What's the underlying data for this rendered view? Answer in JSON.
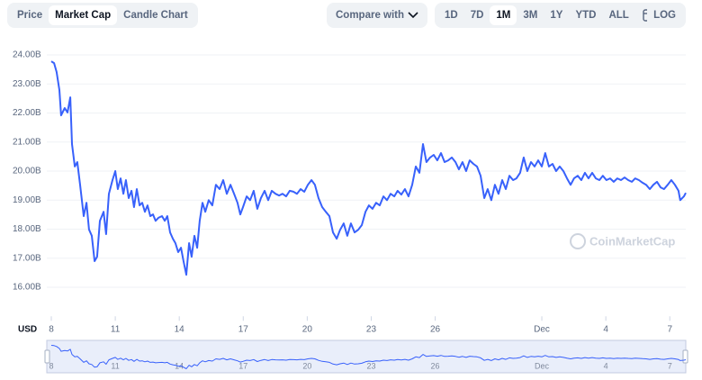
{
  "toolbar": {
    "views": [
      "Price",
      "Market Cap",
      "Candle Chart"
    ],
    "compare": "Compare with",
    "ranges": [
      "1D",
      "7D",
      "1M",
      "3M",
      "1Y",
      "YTD",
      "ALL"
    ],
    "scale_button": "LOG"
  },
  "watermark": "CoinMarketCap",
  "chart_data": {
    "type": "line",
    "y_label": "USD",
    "color": "#3861fb",
    "grid": true,
    "x": [
      0,
      0.13,
      0.25,
      0.38,
      0.46,
      0.63,
      0.76,
      0.89,
      0.97,
      1.1,
      1.22,
      1.35,
      1.52,
      1.65,
      1.77,
      1.9,
      2.03,
      2.15,
      2.28,
      2.45,
      2.57,
      2.7,
      2.87,
      3.0,
      3.12,
      3.25,
      3.38,
      3.5,
      3.63,
      3.76,
      3.88,
      4.01,
      4.14,
      4.26,
      4.39,
      4.51,
      4.64,
      4.77,
      4.89,
      5.02,
      5.19,
      5.32,
      5.44,
      5.57,
      5.7,
      5.82,
      5.95,
      6.08,
      6.2,
      6.33,
      6.46,
      6.58,
      6.71,
      6.84,
      6.96,
      7.09,
      7.22,
      7.38,
      7.55,
      7.72,
      7.89,
      8.06,
      8.23,
      8.4,
      8.57,
      8.73,
      8.86,
      8.99,
      9.16,
      9.32,
      9.49,
      9.66,
      9.83,
      10.0,
      10.17,
      10.34,
      10.51,
      10.68,
      10.84,
      11.01,
      11.18,
      11.35,
      11.52,
      11.69,
      11.86,
      12.03,
      12.2,
      12.36,
      12.53,
      12.7,
      12.87,
      13.04,
      13.21,
      13.38,
      13.54,
      13.71,
      13.88,
      14.05,
      14.22,
      14.39,
      14.56,
      14.73,
      14.89,
      15.06,
      15.23,
      15.4,
      15.57,
      15.74,
      15.91,
      16.08,
      16.24,
      16.41,
      16.58,
      16.75,
      16.92,
      17.09,
      17.26,
      17.43,
      17.59,
      17.76,
      17.93,
      18.1,
      18.27,
      18.44,
      18.61,
      18.78,
      18.95,
      19.11,
      19.28,
      19.45,
      19.62,
      19.79,
      19.96,
      20.13,
      20.3,
      20.46,
      20.63,
      20.8,
      20.97,
      21.14,
      21.31,
      21.48,
      21.65,
      21.81,
      21.98,
      22.15,
      22.32,
      22.49,
      22.66,
      22.83,
      23.0,
      23.16,
      23.33,
      23.5,
      23.67,
      23.84,
      24.01,
      24.18,
      24.35,
      24.51,
      24.68,
      24.85,
      25.02,
      25.19,
      25.36,
      25.53,
      25.7,
      25.86,
      26.03,
      26.2,
      26.37,
      26.54,
      26.71,
      26.88,
      27.05,
      27.22,
      27.38,
      27.55,
      27.72,
      27.89,
      28.06,
      28.23,
      28.4,
      28.57,
      28.73,
      28.9,
      29.07,
      29.24,
      29.41,
      29.49,
      29.66,
      29.75
    ],
    "values": [
      23.78,
      23.72,
      23.41,
      22.79,
      21.92,
      22.17,
      22.02,
      22.54,
      20.93,
      20.16,
      20.31,
      19.53,
      18.45,
      18.91,
      17.99,
      17.77,
      16.9,
      17.05,
      18.29,
      18.6,
      17.83,
      19.22,
      19.69,
      20.0,
      19.38,
      19.75,
      19.22,
      19.69,
      19.07,
      19.32,
      18.76,
      19.38,
      18.82,
      18.91,
      18.6,
      18.82,
      18.45,
      18.51,
      18.29,
      18.39,
      18.45,
      18.29,
      18.45,
      17.89,
      17.67,
      17.52,
      17.21,
      17.36,
      16.9,
      16.43,
      17.52,
      17.05,
      17.77,
      17.36,
      18.29,
      18.91,
      18.6,
      19.0,
      18.82,
      19.53,
      19.38,
      19.69,
      19.22,
      19.53,
      19.22,
      18.91,
      18.51,
      18.76,
      19.13,
      19.0,
      19.32,
      18.7,
      19.07,
      19.32,
      19.0,
      19.32,
      19.22,
      19.16,
      19.22,
      19.13,
      19.32,
      19.29,
      19.22,
      19.38,
      19.29,
      19.53,
      19.69,
      19.53,
      19.07,
      18.76,
      18.6,
      18.45,
      17.89,
      17.67,
      17.98,
      18.2,
      17.77,
      18.2,
      17.89,
      17.98,
      18.14,
      18.6,
      18.82,
      18.7,
      18.91,
      18.82,
      19.13,
      19.0,
      19.22,
      19.13,
      19.32,
      19.19,
      19.38,
      19.13,
      19.53,
      20.16,
      19.94,
      20.93,
      20.31,
      20.47,
      20.56,
      20.37,
      20.62,
      20.31,
      20.37,
      20.47,
      20.31,
      20.06,
      20.31,
      20.0,
      20.37,
      20.25,
      20.16,
      19.84,
      19.07,
      19.38,
      19.0,
      19.53,
      19.22,
      19.69,
      19.38,
      19.84,
      19.69,
      19.75,
      19.94,
      20.47,
      20.0,
      20.31,
      20.16,
      20.37,
      20.16,
      20.62,
      20.16,
      20.25,
      20.0,
      20.16,
      20.0,
      19.75,
      19.53,
      19.75,
      19.84,
      19.69,
      19.94,
      19.75,
      19.94,
      19.75,
      19.69,
      19.84,
      19.69,
      19.75,
      19.63,
      19.75,
      19.69,
      19.78,
      19.69,
      19.63,
      19.75,
      19.69,
      19.6,
      19.53,
      19.38,
      19.53,
      19.63,
      19.44,
      19.38,
      19.53,
      19.69,
      19.53,
      19.32,
      19.0,
      19.13,
      19.25
    ],
    "xlim": [
      0,
      29.75
    ],
    "xticks": [
      {
        "value": 0,
        "label": "8"
      },
      {
        "value": 3,
        "label": "11"
      },
      {
        "value": 6,
        "label": "14"
      },
      {
        "value": 9,
        "label": "17"
      },
      {
        "value": 12,
        "label": "20"
      },
      {
        "value": 15,
        "label": "23"
      },
      {
        "value": 18,
        "label": "26"
      },
      {
        "value": 23,
        "label": "Dec"
      },
      {
        "value": 26,
        "label": "4"
      },
      {
        "value": 29,
        "label": "7"
      }
    ],
    "ylim": [
      15,
      24.5
    ],
    "yticks": [
      {
        "value": 16,
        "label": "16.00B"
      },
      {
        "value": 17,
        "label": "17.00B"
      },
      {
        "value": 18,
        "label": "18.00B"
      },
      {
        "value": 19,
        "label": "19.00B"
      },
      {
        "value": 20,
        "label": "20.00B"
      },
      {
        "value": 21,
        "label": "21.00B"
      },
      {
        "value": 22,
        "label": "22.00B"
      },
      {
        "value": 23,
        "label": "23.00B"
      },
      {
        "value": 24,
        "label": "24.00B"
      }
    ]
  }
}
